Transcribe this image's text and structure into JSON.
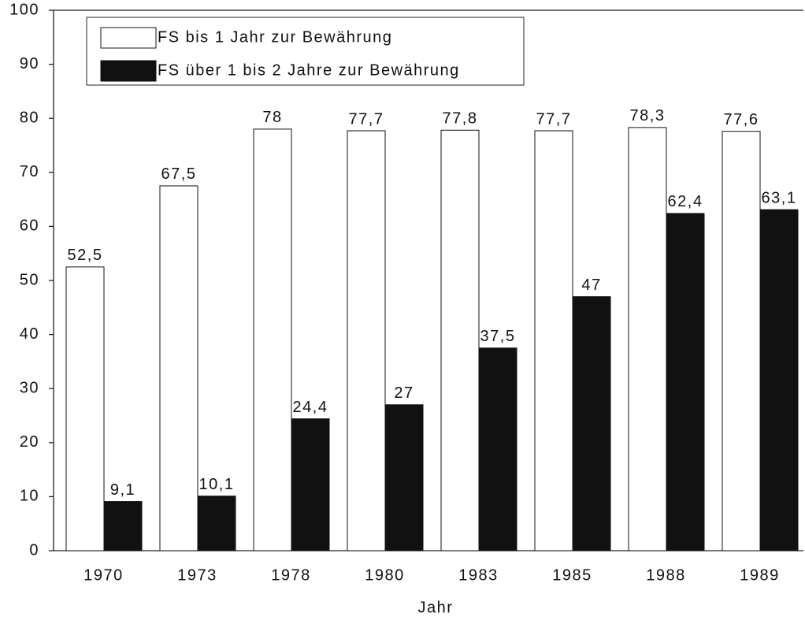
{
  "chart_data": {
    "type": "bar",
    "x_label": "Jahr",
    "categories": [
      "1970",
      "1973",
      "1978",
      "1980",
      "1983",
      "1985",
      "1988",
      "1989"
    ],
    "series": [
      {
        "name": "FS bis 1 Jahr zur Bewährung",
        "color": "#ffffff",
        "values": [
          52.5,
          67.5,
          78,
          77.7,
          77.8,
          77.7,
          78.3,
          77.6
        ],
        "value_labels": [
          "52,5",
          "67,5",
          "78",
          "77,7",
          "77,8",
          "77,7",
          "78,3",
          "77,6"
        ]
      },
      {
        "name": "FS über 1 bis 2 Jahre zur Bewährung",
        "color": "#111111",
        "values": [
          9.1,
          10.1,
          24.4,
          27,
          37.5,
          47,
          62.4,
          63.1
        ],
        "value_labels": [
          "9,1",
          "10,1",
          "24,4",
          "27",
          "37,5",
          "47",
          "62,4",
          "63,1"
        ]
      }
    ],
    "ylim": [
      0,
      100
    ],
    "yticks": [
      0,
      10,
      20,
      30,
      40,
      50,
      60,
      70,
      80,
      90,
      100
    ],
    "legend": "top-left"
  }
}
